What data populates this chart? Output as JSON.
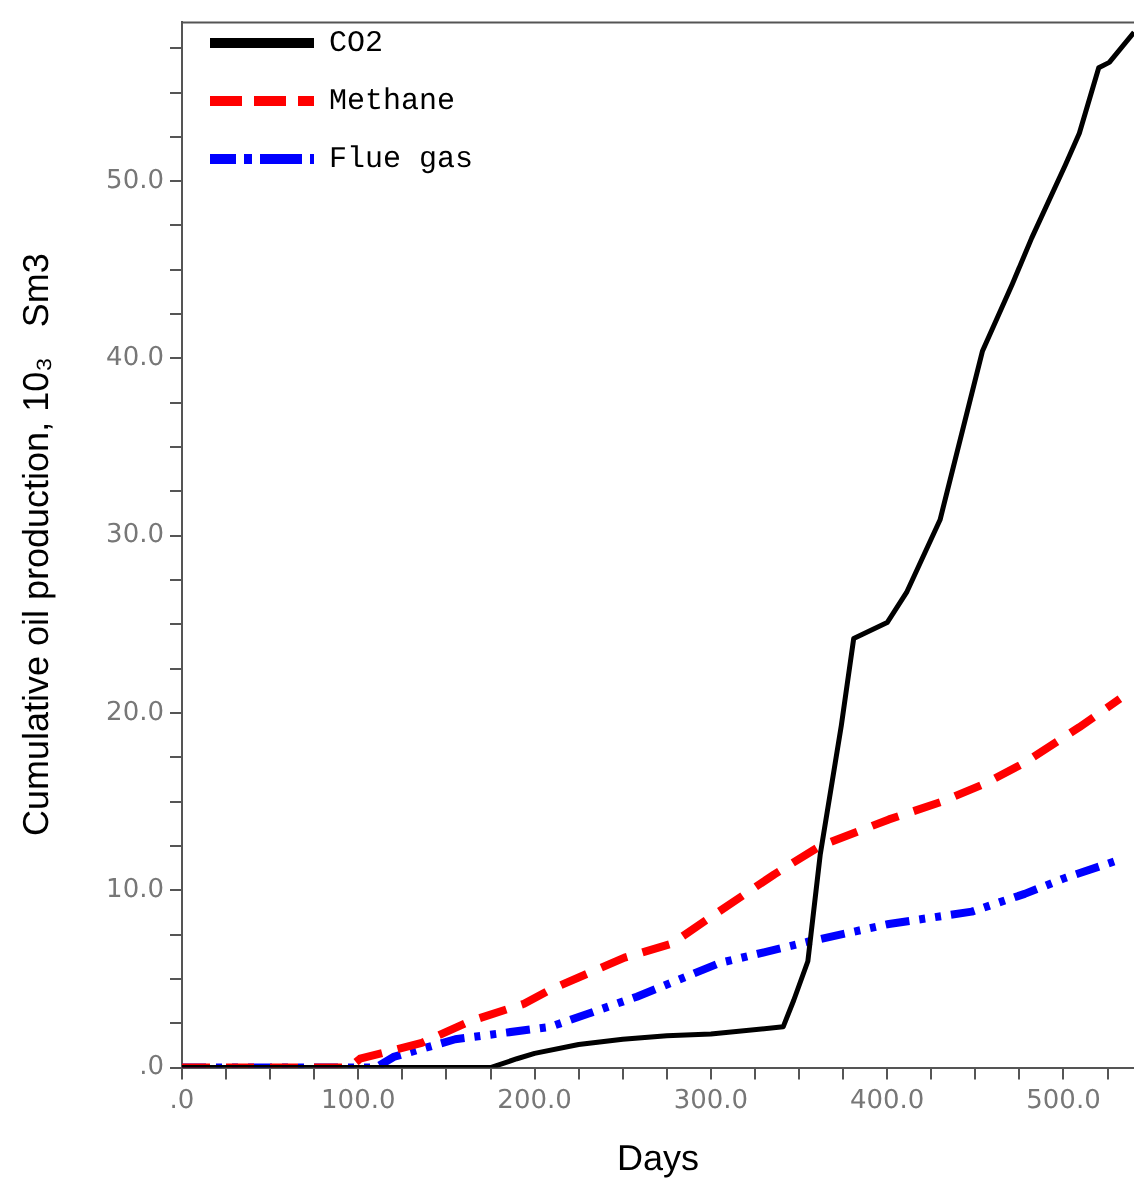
{
  "chart_data": {
    "type": "line",
    "xlabel": "Days",
    "ylabel": "Cumulative oil production, 10₃   Sm3",
    "legend": "top left",
    "grid": false,
    "marker": "none",
    "xlim": [
      0,
      540
    ],
    "ylim": [
      0,
      59
    ],
    "xticks": [
      {
        "value": 0,
        "label": ".0"
      },
      {
        "value": 25,
        "label": null
      },
      {
        "value": 50,
        "label": null
      },
      {
        "value": 75,
        "label": null
      },
      {
        "value": 100,
        "label": "100.0"
      },
      {
        "value": 125,
        "label": null
      },
      {
        "value": 150,
        "label": null
      },
      {
        "value": 175,
        "label": null
      },
      {
        "value": 200,
        "label": "200.0"
      },
      {
        "value": 225,
        "label": null
      },
      {
        "value": 250,
        "label": null
      },
      {
        "value": 275,
        "label": null
      },
      {
        "value": 300,
        "label": "300.0"
      },
      {
        "value": 325,
        "label": null
      },
      {
        "value": 350,
        "label": null
      },
      {
        "value": 375,
        "label": null
      },
      {
        "value": 400,
        "label": "400.0"
      },
      {
        "value": 425,
        "label": null
      },
      {
        "value": 450,
        "label": null
      },
      {
        "value": 475,
        "label": null
      },
      {
        "value": 500,
        "label": "500.0"
      },
      {
        "value": 525,
        "label": null
      }
    ],
    "yticks": [
      {
        "value": 0,
        "label": ".0"
      },
      {
        "value": 2.5,
        "label": null
      },
      {
        "value": 5,
        "label": null
      },
      {
        "value": 7.5,
        "label": null
      },
      {
        "value": 10,
        "label": "10.0"
      },
      {
        "value": 12.5,
        "label": null
      },
      {
        "value": 15,
        "label": null
      },
      {
        "value": 17.5,
        "label": null
      },
      {
        "value": 20,
        "label": "20.0"
      },
      {
        "value": 22.5,
        "label": null
      },
      {
        "value": 25,
        "label": null
      },
      {
        "value": 27.5,
        "label": null
      },
      {
        "value": 30,
        "label": "30.0"
      },
      {
        "value": 32.5,
        "label": null
      },
      {
        "value": 35,
        "label": null
      },
      {
        "value": 37.5,
        "label": null
      },
      {
        "value": 40,
        "label": "40.0"
      },
      {
        "value": 42.5,
        "label": null
      },
      {
        "value": 45,
        "label": null
      },
      {
        "value": 47.5,
        "label": null
      },
      {
        "value": 50,
        "label": "50.0"
      },
      {
        "value": 52.5,
        "label": null
      },
      {
        "value": 55,
        "label": null
      },
      {
        "value": 57.5,
        "label": null
      }
    ],
    "series": [
      {
        "name": "CO2",
        "color": "#000000",
        "line_style": "solid",
        "x": [
          0,
          175,
          190,
          200,
          225,
          250,
          275,
          300,
          341,
          347,
          355,
          362,
          374,
          381,
          400,
          411,
          430,
          454,
          471,
          482,
          501,
          509,
          520,
          526,
          540
        ],
        "values": [
          0,
          0,
          0.5,
          0.8,
          1.3,
          1.6,
          1.8,
          1.9,
          2.3,
          3.8,
          6,
          12,
          19.3,
          24.2,
          25.1,
          26.8,
          30.9,
          40.4,
          44.2,
          46.8,
          50.9,
          52.7,
          56.4,
          56.7,
          58.4
        ]
      },
      {
        "name": "Methane",
        "color": "#ff0000",
        "line_style": "dashed",
        "x": [
          0,
          95,
          101,
          136,
          163,
          194,
          209,
          251,
          278,
          297,
          336,
          362,
          401,
          431,
          455,
          478,
          509,
          532
        ],
        "values": [
          0,
          0,
          0.5,
          1.4,
          2.6,
          3.6,
          4.4,
          6.2,
          7,
          8.3,
          10.9,
          12.5,
          14,
          15,
          16,
          17.2,
          19.2,
          20.8
        ]
      },
      {
        "name": "Flue gas",
        "color": "#0000ff",
        "line_style": "dotted",
        "x": [
          0,
          110,
          120,
          155,
          209,
          258,
          305,
          355,
          401,
          448,
          478,
          501,
          534
        ],
        "values": [
          0,
          0,
          0.6,
          1.6,
          2.3,
          4,
          5.9,
          7.1,
          8.1,
          8.8,
          9.8,
          10.7,
          11.8
        ]
      }
    ]
  }
}
